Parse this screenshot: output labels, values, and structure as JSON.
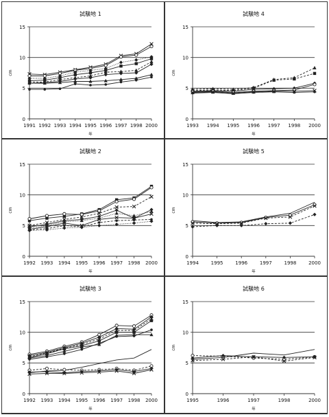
{
  "chart_data": [
    {
      "type": "line",
      "title": "試験地 1",
      "xlabel": "年",
      "ylabel": "cm",
      "x": [
        "1991",
        "1992",
        "1993",
        "1994",
        "1995",
        "1996",
        "1997",
        "1998",
        "2000"
      ],
      "ylim": [
        0,
        15
      ],
      "yticks": [
        0,
        5,
        10,
        15
      ],
      "grid": "horizontal",
      "series": [
        {
          "marker": "x",
          "dash": "solid",
          "values": [
            7.3,
            7.2,
            7.6,
            8.0,
            8.4,
            8.9,
            10.3,
            10.6,
            12.2
          ]
        },
        {
          "marker": "circle",
          "dash": "solid",
          "values": [
            7.0,
            7.0,
            7.4,
            7.9,
            8.2,
            8.7,
            10.1,
            10.4,
            11.8
          ]
        },
        {
          "marker": "diamond",
          "dash": "dot",
          "values": [
            6.6,
            6.6,
            7.0,
            7.6,
            7.9,
            8.2,
            9.2,
            9.6,
            10.1
          ]
        },
        {
          "marker": "square",
          "dash": "solid",
          "values": [
            6.2,
            6.3,
            6.7,
            7.2,
            7.5,
            7.9,
            8.6,
            9.0,
            9.8
          ]
        },
        {
          "marker": "triangle",
          "dash": "dash",
          "values": [
            6.0,
            6.0,
            6.4,
            6.7,
            7.0,
            7.6,
            7.7,
            7.9,
            9.3
          ]
        },
        {
          "marker": "diamond",
          "dash": "solid",
          "values": [
            5.8,
            5.9,
            6.1,
            6.5,
            6.7,
            7.2,
            7.4,
            7.5,
            8.9
          ]
        },
        {
          "marker": "triangle",
          "dash": "solid",
          "values": [
            5.8,
            5.8,
            5.9,
            6.1,
            6.1,
            6.2,
            6.4,
            6.6,
            7.2
          ]
        },
        {
          "marker": "dot",
          "dash": "solid",
          "values": [
            4.8,
            4.8,
            4.9,
            5.7,
            5.5,
            5.6,
            6.0,
            6.3,
            6.8
          ]
        }
      ]
    },
    {
      "type": "line",
      "title": "試験地 4",
      "xlabel": "年",
      "ylabel": "cm",
      "x": [
        "1993",
        "1994",
        "1995",
        "1996",
        "1997",
        "1998",
        "2000"
      ],
      "ylim": [
        0,
        15
      ],
      "yticks": [
        0,
        5,
        10,
        15
      ],
      "grid": "horizontal",
      "series": [
        {
          "marker": "triangle",
          "dash": "dash",
          "values": [
            4.8,
            4.9,
            4.8,
            5.1,
            6.4,
            6.7,
            8.3
          ]
        },
        {
          "marker": "square",
          "dash": "dash",
          "values": [
            4.6,
            4.7,
            4.6,
            5.0,
            6.3,
            6.5,
            7.4
          ]
        },
        {
          "marker": "diamond",
          "dash": "solid",
          "values": [
            4.5,
            4.6,
            4.5,
            4.8,
            4.9,
            5.0,
            5.8
          ]
        },
        {
          "marker": "circle",
          "dash": "solid",
          "values": [
            4.4,
            4.5,
            4.3,
            4.5,
            4.6,
            4.7,
            5.6
          ]
        },
        {
          "marker": "x",
          "dash": "solid",
          "values": [
            4.3,
            4.4,
            4.2,
            4.4,
            4.5,
            4.5,
            4.6
          ]
        },
        {
          "marker": "dot",
          "dash": "solid",
          "values": [
            4.2,
            4.3,
            4.1,
            4.3,
            4.4,
            4.3,
            4.4
          ]
        }
      ]
    },
    {
      "type": "line",
      "title": "試験地 2",
      "xlabel": "年",
      "ylabel": "cm",
      "x": [
        "1992",
        "1993",
        "1994",
        "1995",
        "1996",
        "1997",
        "1998",
        "2000"
      ],
      "ylim": [
        0,
        15
      ],
      "yticks": [
        0,
        5,
        10,
        15
      ],
      "grid": "horizontal",
      "series": [
        {
          "marker": "square",
          "dash": "solid",
          "values": [
            5.8,
            6.2,
            6.5,
            6.9,
            7.6,
            9.2,
            9.5,
            11.4
          ]
        },
        {
          "marker": "circle",
          "dash": "solid",
          "values": [
            6.1,
            6.6,
            6.9,
            6.8,
            7.4,
            8.9,
            9.3,
            11.2
          ]
        },
        {
          "marker": "x",
          "dash": "dash",
          "values": [
            5.0,
            5.5,
            6.0,
            6.4,
            7.0,
            8.0,
            8.1,
            9.7
          ]
        },
        {
          "marker": "diamond",
          "dash": "solid",
          "values": [
            4.8,
            5.2,
            5.8,
            6.0,
            6.5,
            7.5,
            6.2,
            7.6
          ]
        },
        {
          "marker": "triangle",
          "dash": "dot",
          "values": [
            4.6,
            5.0,
            5.6,
            5.8,
            6.2,
            7.0,
            6.6,
            7.3
          ]
        },
        {
          "marker": "x",
          "dash": "solid",
          "values": [
            4.4,
            4.8,
            5.4,
            5.0,
            6.0,
            6.3,
            6.2,
            6.9
          ]
        },
        {
          "marker": "dot",
          "dash": "dash",
          "values": [
            4.3,
            4.5,
            5.0,
            4.8,
            5.5,
            5.8,
            5.9,
            6.0
          ]
        },
        {
          "marker": "diamond",
          "dash": "dot",
          "values": [
            4.2,
            4.3,
            4.6,
            4.7,
            5.0,
            5.2,
            5.4,
            5.7
          ]
        }
      ]
    },
    {
      "type": "line",
      "title": "試験地 5",
      "xlabel": "年",
      "ylabel": "cm",
      "x": [
        "1994",
        "1995",
        "1996",
        "1997",
        "1998",
        "2000"
      ],
      "ylim": [
        0,
        15
      ],
      "yticks": [
        0,
        5,
        10,
        15
      ],
      "grid": "horizontal",
      "series": [
        {
          "marker": "none",
          "dash": "solid",
          "values": [
            5.8,
            5.5,
            5.6,
            6.4,
            7.0,
            8.8
          ]
        },
        {
          "marker": "circle",
          "dash": "solid",
          "values": [
            5.6,
            5.4,
            5.5,
            6.3,
            6.7,
            8.4
          ]
        },
        {
          "marker": "x",
          "dash": "dash",
          "values": [
            5.4,
            5.3,
            5.4,
            6.2,
            6.4,
            8.2
          ]
        },
        {
          "marker": "diamond",
          "dash": "dash",
          "values": [
            4.8,
            5.0,
            5.0,
            5.3,
            5.4,
            6.8
          ]
        }
      ]
    },
    {
      "type": "line",
      "title": "試験地 3",
      "xlabel": "年",
      "ylabel": "cm",
      "x": [
        "1992",
        "1993",
        "1994",
        "1995",
        "1996",
        "1997",
        "1998",
        "2000"
      ],
      "ylim": [
        0,
        15
      ],
      "yticks": [
        0,
        5,
        10,
        15
      ],
      "grid": "horizontal",
      "series": [
        {
          "marker": "circle",
          "dash": "solid",
          "values": [
            6.4,
            6.9,
            7.7,
            8.4,
            9.6,
            11.1,
            11.0,
            12.8
          ]
        },
        {
          "marker": "diamond",
          "dash": "solid",
          "values": [
            6.2,
            6.7,
            7.5,
            8.2,
            9.2,
            10.6,
            10.5,
            12.5
          ]
        },
        {
          "marker": "x",
          "dash": "dash",
          "values": [
            6.0,
            6.6,
            7.4,
            8.0,
            8.9,
            10.3,
            10.3,
            12.2
          ]
        },
        {
          "marker": "square",
          "dash": "solid",
          "values": [
            5.9,
            6.5,
            7.3,
            7.8,
            8.6,
            10.0,
            10.0,
            11.9
          ]
        },
        {
          "marker": "dot",
          "dash": "solid",
          "values": [
            5.6,
            6.0,
            6.5,
            7.2,
            8.2,
            9.3,
            9.4,
            10.4
          ]
        },
        {
          "marker": "triangle",
          "dash": "solid",
          "values": [
            5.8,
            6.2,
            6.9,
            7.6,
            8.0,
            9.5,
            9.6,
            9.6
          ]
        },
        {
          "marker": "none",
          "dash": "solid",
          "values": [
            3.4,
            3.7,
            3.8,
            4.3,
            4.9,
            5.5,
            5.8,
            7.2
          ]
        },
        {
          "marker": "circle",
          "dash": "dash",
          "values": [
            3.8,
            4.1,
            3.9,
            3.8,
            3.9,
            4.1,
            3.8,
            4.5
          ]
        },
        {
          "marker": "diamond",
          "dash": "solid",
          "values": [
            3.5,
            3.6,
            3.4,
            3.6,
            3.7,
            3.9,
            3.6,
            4.1
          ]
        },
        {
          "marker": "x",
          "dash": "solid",
          "values": [
            3.2,
            3.3,
            3.3,
            3.4,
            3.5,
            3.7,
            3.3,
            3.9
          ]
        }
      ]
    },
    {
      "type": "line",
      "title": "試験地 6",
      "xlabel": "年",
      "ylabel": "cm",
      "x": [
        "1995",
        "1996",
        "1997",
        "1998",
        "2000"
      ],
      "ylim": [
        0,
        15
      ],
      "yticks": [
        0,
        5,
        10,
        15
      ],
      "grid": "horizontal",
      "series": [
        {
          "marker": "none",
          "dash": "solid",
          "values": [
            5.6,
            5.9,
            6.6,
            6.3,
            7.2
          ]
        },
        {
          "marker": "circle",
          "dash": "dash",
          "values": [
            6.2,
            6.1,
            5.8,
            5.6,
            6.0
          ]
        },
        {
          "marker": "diamond",
          "dash": "solid",
          "values": [
            5.8,
            6.2,
            6.0,
            5.9,
            6.0
          ]
        },
        {
          "marker": "x",
          "dash": "dash",
          "values": [
            5.4,
            5.6,
            6.0,
            5.3,
            5.9
          ]
        }
      ]
    }
  ]
}
